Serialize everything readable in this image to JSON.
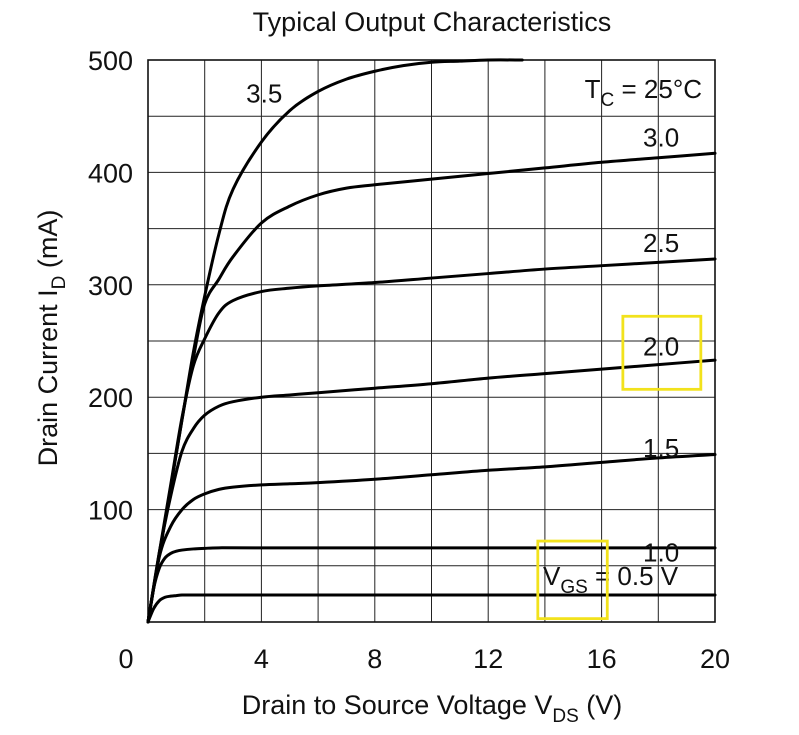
{
  "chart_data": {
    "type": "line",
    "title": "Typical Output Characteristics",
    "xlabel": {
      "main": "Drain to Source Voltage  V",
      "sub": "DS",
      "unit": "  (V)"
    },
    "ylabel": {
      "main": "Drain Current  I",
      "sub": "D",
      "unit": "  (mA)"
    },
    "xlim": [
      0,
      20
    ],
    "ylim": [
      0,
      500
    ],
    "x_ticks": [
      0,
      4,
      8,
      12,
      16,
      20
    ],
    "y_ticks": [
      100,
      200,
      300,
      400,
      500
    ],
    "grid": true,
    "annotation": {
      "main": "T",
      "sub": "C",
      "rest": " = 25°C"
    },
    "series": [
      {
        "name": "3.5",
        "x": [
          0,
          0.4,
          0.8,
          1.2,
          1.6,
          2.0,
          2.5,
          3,
          4,
          5,
          6,
          7,
          8,
          9,
          10,
          11,
          12,
          13.2
        ],
        "y": [
          0,
          60,
          120,
          180,
          240,
          290,
          345,
          385,
          427,
          455,
          472,
          483,
          490,
          495,
          498,
          499,
          500,
          500
        ]
      },
      {
        "name": "3.0",
        "x": [
          0,
          0.4,
          0.8,
          1.2,
          1.6,
          2.0,
          2.5,
          3,
          4,
          5,
          6,
          7,
          8,
          10,
          12,
          14,
          16,
          18,
          20
        ],
        "y": [
          0,
          60,
          120,
          180,
          235,
          283,
          305,
          325,
          355,
          370,
          380,
          386,
          389,
          394,
          399,
          404,
          409,
          413,
          417
        ]
      },
      {
        "name": "2.5",
        "x": [
          0,
          0.4,
          0.8,
          1.2,
          1.6,
          2.0,
          2.5,
          3,
          4,
          5,
          6,
          8,
          10,
          12,
          14,
          16,
          18,
          20
        ],
        "y": [
          0,
          62,
          122,
          182,
          228,
          252,
          275,
          286,
          294,
          297,
          299,
          302,
          306,
          310,
          314,
          317,
          320,
          323
        ]
      },
      {
        "name": "2.0",
        "x": [
          0,
          0.4,
          0.8,
          1.2,
          1.6,
          2.0,
          2.5,
          3,
          4,
          5,
          6,
          8,
          10,
          12,
          14,
          16,
          18,
          20
        ],
        "y": [
          0,
          62,
          112,
          152,
          172,
          184,
          192,
          196,
          200,
          202,
          204,
          208,
          212,
          217,
          221,
          225,
          229,
          233
        ]
      },
      {
        "name": "1.5",
        "x": [
          0,
          0.4,
          0.8,
          1.2,
          1.6,
          2.0,
          2.5,
          3,
          4,
          5,
          6,
          8,
          10,
          12,
          14,
          16,
          18,
          20
        ],
        "y": [
          0,
          58,
          85,
          100,
          109,
          114,
          118,
          120,
          122,
          123,
          124,
          127,
          131,
          135,
          138,
          142,
          146,
          149
        ]
      },
      {
        "name": "1.0",
        "x": [
          0,
          0.2,
          0.4,
          0.6,
          0.8,
          1.0,
          1.2,
          1.6,
          2.0,
          2.5,
          4,
          8,
          12,
          16,
          20
        ],
        "y": [
          0,
          30,
          48,
          57,
          61,
          63,
          64,
          65,
          65.5,
          66,
          66,
          66,
          66,
          66,
          66
        ]
      },
      {
        "name": "0.5",
        "x": [
          0,
          0.2,
          0.4,
          0.6,
          0.8,
          1.0,
          1.2,
          1.6,
          2.0,
          4,
          8,
          12,
          16,
          20
        ],
        "y": [
          0,
          12,
          19,
          22,
          23,
          23.5,
          24,
          24,
          24,
          24,
          24,
          24,
          24,
          24
        ]
      }
    ],
    "series_labels": [
      {
        "text": "3.5",
        "x": 4.1,
        "y": 470
      },
      {
        "text": "3.0",
        "x": 18.1,
        "y": 431
      },
      {
        "text": "2.5",
        "x": 18.1,
        "y": 337
      },
      {
        "text": "2.0",
        "x": 18.1,
        "y": 245
      },
      {
        "text": "1.5",
        "x": 18.1,
        "y": 155
      },
      {
        "text": "1.0",
        "x": 18.1,
        "y": 62
      }
    ],
    "vgs_label": {
      "main": "V",
      "sub": "GS",
      "rest": " = 0.5 V",
      "x": 13.85,
      "y": 28
    },
    "highlight_boxes": [
      {
        "x0": 16.75,
        "x1": 19.5,
        "y0": 207,
        "y1": 272
      },
      {
        "x0": 13.75,
        "x1": 16.2,
        "y0": 3,
        "y1": 72
      }
    ],
    "highlight_color": "#f2e21c"
  }
}
